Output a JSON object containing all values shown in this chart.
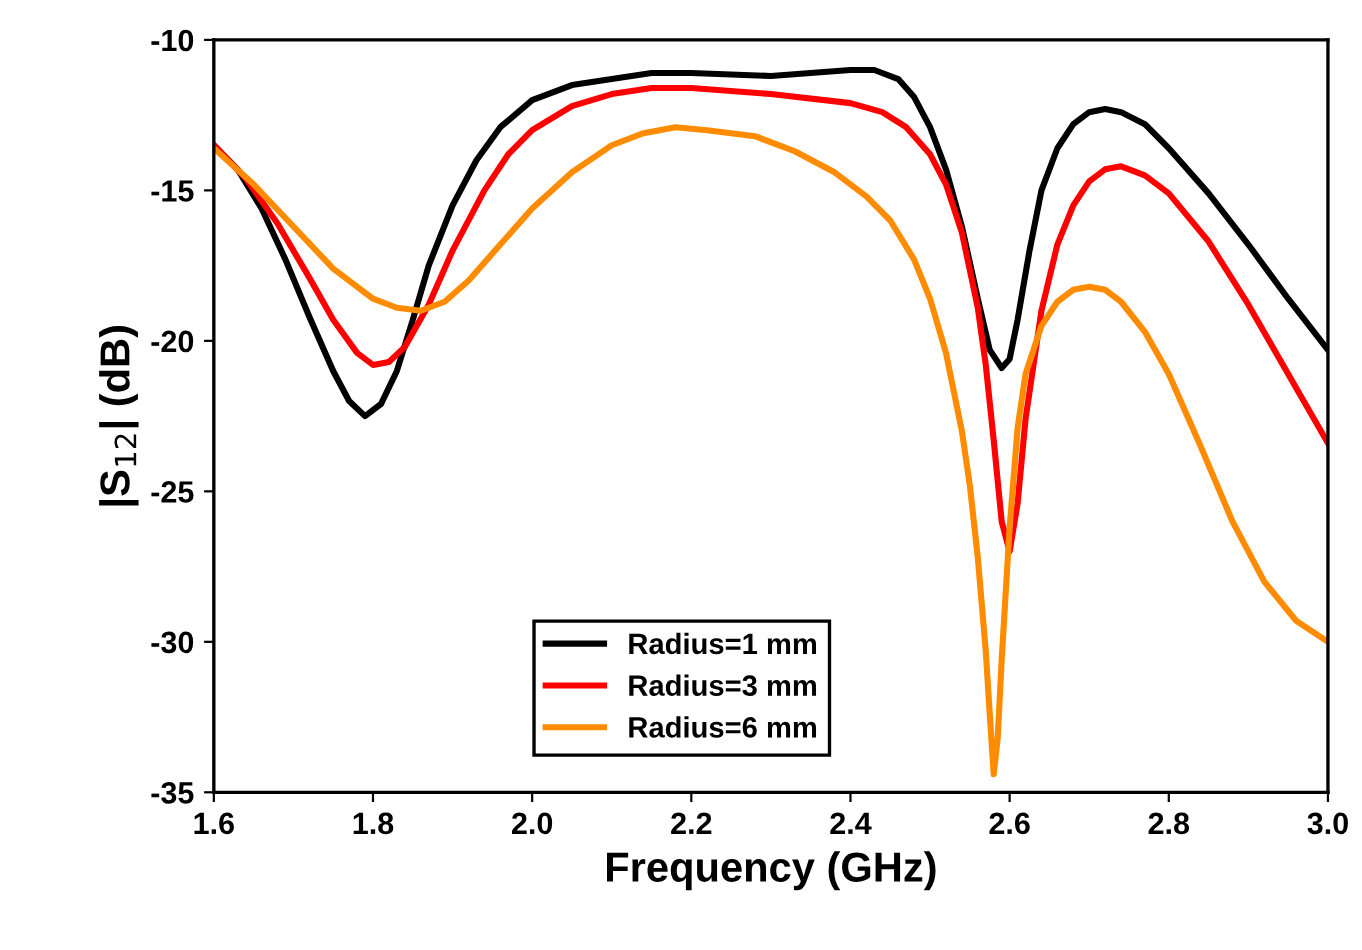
{
  "chart_data": {
    "type": "line",
    "xlabel": "Frequency (GHz)",
    "ylabel": "|S$_{12}$| (dB)",
    "xlim": [
      1.6,
      3.0
    ],
    "xticks": [
      1.6,
      1.8,
      {
        "value": 2,
        "label": "2.0"
      },
      2.2,
      2.4,
      2.6,
      2.8,
      {
        "value": 3,
        "label": "3.0"
      }
    ],
    "ylim": [
      -35,
      -10
    ],
    "yticks": [
      -35,
      -30,
      -25,
      -20,
      -15,
      -10
    ],
    "grid": false,
    "legend": "bottom",
    "marker": "none",
    "line_style": "solid",
    "series": [
      {
        "name": "Radius=1 mm",
        "color": "#000000",
        "x": [
          1.6,
          1.63,
          1.66,
          1.69,
          1.72,
          1.75,
          1.77,
          1.79,
          1.81,
          1.83,
          1.85,
          1.87,
          1.9,
          1.93,
          1.96,
          2.0,
          2.05,
          2.1,
          2.15,
          2.2,
          2.3,
          2.4,
          2.43,
          2.46,
          2.48,
          2.5,
          2.52,
          2.54,
          2.56,
          2.575,
          2.59,
          2.6,
          2.61,
          2.625,
          2.64,
          2.66,
          2.68,
          2.7,
          2.72,
          2.74,
          2.77,
          2.8,
          2.85,
          2.9,
          2.95,
          3.0
        ],
        "values": [
          -13.5,
          -14.3,
          -15.6,
          -17.3,
          -19.2,
          -21,
          -22,
          -22.5,
          -22.1,
          -21,
          -19.3,
          -17.5,
          -15.5,
          -14,
          -12.9,
          -12,
          -11.5,
          -11.3,
          -11.1,
          -11.1,
          -11.2,
          -11.0,
          -11.0,
          -11.3,
          -11.9,
          -12.9,
          -14.3,
          -16.2,
          -18.6,
          -20.3,
          -20.9,
          -20.6,
          -19.3,
          -17,
          -15,
          -13.6,
          -12.8,
          -12.4,
          -12.3,
          -12.4,
          -12.8,
          -13.6,
          -15.1,
          -16.8,
          -18.6,
          -20.3
        ]
      },
      {
        "name": "Radius=3 mm",
        "color": "#ff0000",
        "x": [
          1.6,
          1.64,
          1.68,
          1.72,
          1.75,
          1.78,
          1.8,
          1.82,
          1.84,
          1.87,
          1.9,
          1.94,
          1.97,
          2.0,
          2.05,
          2.1,
          2.15,
          2.2,
          2.3,
          2.4,
          2.44,
          2.47,
          2.5,
          2.52,
          2.54,
          2.56,
          2.57,
          2.58,
          2.59,
          2.6,
          2.61,
          2.62,
          2.64,
          2.66,
          2.68,
          2.7,
          2.72,
          2.74,
          2.77,
          2.8,
          2.85,
          2.9,
          2.95,
          3.0
        ],
        "values": [
          -13.5,
          -14.6,
          -16.1,
          -17.9,
          -19.3,
          -20.4,
          -20.8,
          -20.7,
          -20.2,
          -18.8,
          -17,
          -15,
          -13.8,
          -13,
          -12.2,
          -11.8,
          -11.6,
          -11.6,
          -11.8,
          -12.1,
          -12.4,
          -12.9,
          -13.8,
          -14.8,
          -16.4,
          -18.9,
          -20.8,
          -23.3,
          -26,
          -27,
          -25.4,
          -22.6,
          -19,
          -16.8,
          -15.5,
          -14.7,
          -14.3,
          -14.2,
          -14.5,
          -15.1,
          -16.7,
          -18.8,
          -21.1,
          -23.4
        ]
      },
      {
        "name": "Radius=6 mm",
        "color": "#ff8c00",
        "x": [
          1.6,
          1.65,
          1.7,
          1.75,
          1.8,
          1.83,
          1.86,
          1.89,
          1.92,
          1.96,
          2.0,
          2.05,
          2.1,
          2.14,
          2.18,
          2.22,
          2.28,
          2.33,
          2.38,
          2.42,
          2.45,
          2.48,
          2.5,
          2.52,
          2.54,
          2.55,
          2.56,
          2.57,
          2.575,
          2.58,
          2.585,
          2.59,
          2.6,
          2.61,
          2.62,
          2.64,
          2.66,
          2.68,
          2.7,
          2.72,
          2.74,
          2.77,
          2.8,
          2.84,
          2.88,
          2.92,
          2.96,
          3.0
        ],
        "values": [
          -13.6,
          -14.8,
          -16.2,
          -17.6,
          -18.6,
          -18.9,
          -19,
          -18.7,
          -18,
          -16.8,
          -15.6,
          -14.4,
          -13.5,
          -13.1,
          -12.9,
          -13,
          -13.2,
          -13.7,
          -14.4,
          -15.2,
          -16,
          -17.3,
          -18.6,
          -20.4,
          -23,
          -24.8,
          -27.2,
          -30.3,
          -32.4,
          -34.4,
          -33.2,
          -30.6,
          -26.2,
          -22.9,
          -21.1,
          -19.5,
          -18.7,
          -18.3,
          -18.2,
          -18.3,
          -18.7,
          -19.7,
          -21.1,
          -23.5,
          -26,
          -28,
          -29.3,
          -30
        ]
      }
    ]
  }
}
